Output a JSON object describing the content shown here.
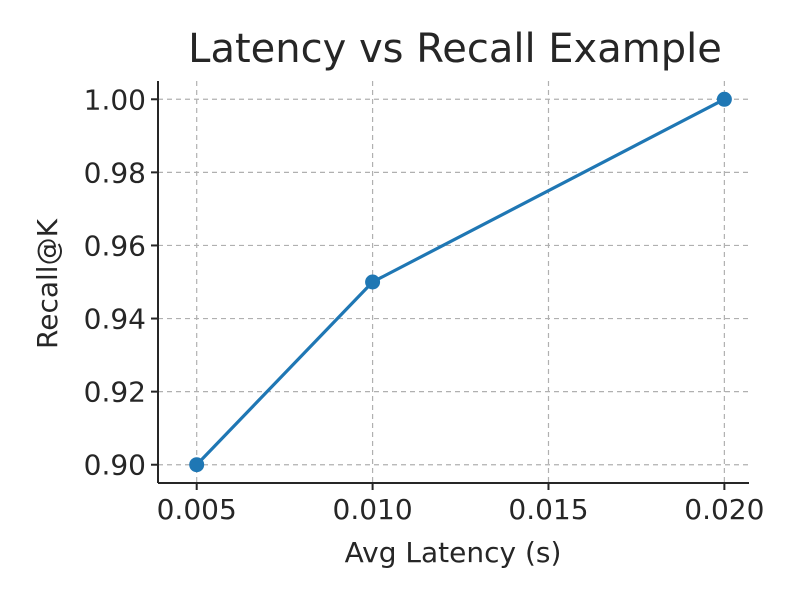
{
  "chart_data": {
    "type": "line",
    "title": "Latency vs Recall Example",
    "xlabel": "Avg Latency (s)",
    "ylabel": "Recall@K",
    "xlim": [
      0.0039,
      0.0207
    ],
    "ylim": [
      0.895,
      1.005
    ],
    "xticks": [
      0.005,
      0.01,
      0.015,
      0.02
    ],
    "xtick_labels": [
      "0.005",
      "0.010",
      "0.015",
      "0.020"
    ],
    "yticks": [
      0.9,
      0.92,
      0.94,
      0.96,
      0.98,
      1.0
    ],
    "ytick_labels": [
      "0.90",
      "0.92",
      "0.94",
      "0.96",
      "0.98",
      "1.00"
    ],
    "grid": true,
    "series": [
      {
        "x": [
          0.005,
          0.01,
          0.02
        ],
        "y": [
          0.9,
          0.95,
          1.0
        ],
        "color": "#1f77b4",
        "marker": "circle"
      }
    ]
  }
}
